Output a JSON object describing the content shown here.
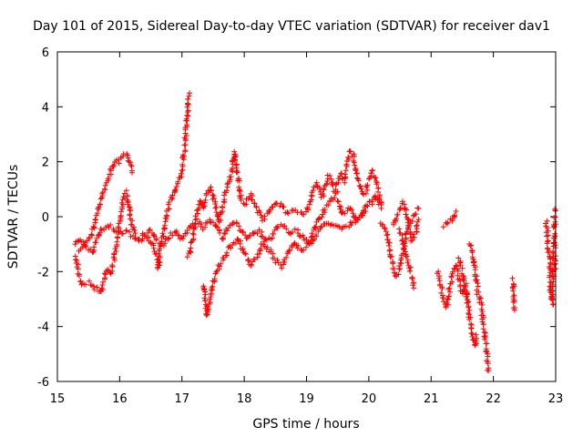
{
  "chart_data": {
    "type": "scatter",
    "title": "Day 101 of 2015, Sidereal Day-to-day VTEC variation (SDTVAR) for receiver dav1",
    "xlabel": "GPS time / hours",
    "ylabel": "SDTVAR / TECUs",
    "xlim": [
      15,
      23
    ],
    "ylim": [
      -6,
      6
    ],
    "x_ticks": [
      15,
      16,
      17,
      18,
      19,
      20,
      21,
      22,
      23
    ],
    "y_ticks": [
      -6,
      -4,
      -2,
      0,
      2,
      4,
      6
    ],
    "grid": false,
    "marker": "+",
    "marker_color": "#ff0000",
    "series": [
      {
        "name": "SDTVAR",
        "tracks": [
          [
            [
              15.27,
              -1.0
            ],
            [
              15.35,
              -0.8
            ],
            [
              15.45,
              -1.1
            ],
            [
              15.55,
              -1.3
            ],
            [
              15.62,
              -0.9
            ],
            [
              15.7,
              -0.5
            ],
            [
              15.8,
              -0.3
            ],
            [
              15.9,
              -0.4
            ],
            [
              16.0,
              -0.6
            ],
            [
              16.1,
              -0.5
            ],
            [
              16.2,
              -0.7
            ],
            [
              16.3,
              -0.8
            ],
            [
              16.4,
              -0.6
            ],
            [
              16.5,
              -0.5
            ],
            [
              16.6,
              -0.9
            ],
            [
              16.7,
              -1.0
            ],
            [
              16.8,
              -0.7
            ],
            [
              16.9,
              -0.5
            ],
            [
              17.0,
              -0.8
            ],
            [
              17.05,
              -0.6
            ],
            [
              17.15,
              -0.3
            ],
            [
              17.25,
              -0.2
            ],
            [
              17.35,
              -0.4
            ],
            [
              17.45,
              -0.1
            ],
            [
              17.55,
              -0.3
            ],
            [
              17.65,
              -0.8
            ],
            [
              17.75,
              -0.4
            ],
            [
              17.85,
              -0.2
            ],
            [
              17.95,
              -0.5
            ],
            [
              18.05,
              -0.8
            ],
            [
              18.15,
              -0.6
            ],
            [
              18.25,
              -0.5
            ],
            [
              18.35,
              -0.9
            ],
            [
              18.45,
              -0.7
            ],
            [
              18.55,
              -0.3
            ],
            [
              18.65,
              -0.4
            ],
            [
              18.75,
              -0.6
            ],
            [
              18.85,
              -0.5
            ],
            [
              18.95,
              -0.8
            ],
            [
              19.05,
              -1.0
            ],
            [
              19.15,
              -0.7
            ],
            [
              19.25,
              -0.4
            ],
            [
              19.35,
              -0.2
            ],
            [
              19.45,
              -0.3
            ],
            [
              19.55,
              -0.5
            ],
            [
              19.65,
              -0.4
            ],
            [
              19.75,
              -0.1
            ],
            [
              19.85,
              0.0
            ],
            [
              19.95,
              0.2
            ]
          ],
          [
            [
              15.3,
              -1.5
            ],
            [
              15.35,
              -2.2
            ],
            [
              15.4,
              -2.5
            ],
            [
              15.5,
              -2.4
            ],
            [
              15.6,
              -2.6
            ],
            [
              15.7,
              -2.8
            ],
            [
              15.75,
              -2.3
            ],
            [
              15.8,
              -1.9
            ],
            [
              15.85,
              -2.1
            ],
            [
              15.9,
              -1.6
            ],
            [
              15.95,
              -1.0
            ],
            [
              16.0,
              -0.2
            ],
            [
              16.05,
              0.5
            ],
            [
              16.1,
              0.9
            ],
            [
              16.15,
              0.3
            ],
            [
              16.2,
              -0.3
            ],
            [
              16.25,
              -0.6
            ]
          ],
          [
            [
              15.35,
              -1.2
            ],
            [
              15.45,
              -0.9
            ],
            [
              15.55,
              -0.6
            ],
            [
              15.6,
              -0.2
            ],
            [
              15.65,
              0.3
            ],
            [
              15.7,
              0.6
            ],
            [
              15.75,
              1.0
            ],
            [
              15.8,
              1.3
            ],
            [
              15.85,
              1.6
            ],
            [
              15.9,
              1.9
            ],
            [
              15.95,
              2.1
            ],
            [
              16.0,
              2.0
            ],
            [
              16.05,
              2.2
            ],
            [
              16.1,
              2.3
            ],
            [
              16.15,
              2.0
            ],
            [
              16.2,
              1.6
            ]
          ],
          [
            [
              16.3,
              -0.9
            ],
            [
              16.4,
              -0.7
            ],
            [
              16.5,
              -0.9
            ],
            [
              16.6,
              -1.5
            ],
            [
              16.62,
              -1.9
            ],
            [
              16.65,
              -1.2
            ],
            [
              16.7,
              -0.5
            ],
            [
              16.75,
              0.1
            ],
            [
              16.8,
              0.5
            ],
            [
              16.85,
              0.7
            ],
            [
              16.9,
              1.0
            ],
            [
              16.95,
              1.3
            ],
            [
              17.0,
              1.6
            ],
            [
              17.02,
              2.0
            ],
            [
              17.05,
              2.8
            ],
            [
              17.08,
              3.5
            ],
            [
              17.1,
              4.2
            ],
            [
              17.12,
              4.5
            ]
          ],
          [
            [
              17.1,
              -1.5
            ],
            [
              17.15,
              -1.0
            ],
            [
              17.2,
              -0.5
            ],
            [
              17.25,
              0.2
            ],
            [
              17.3,
              0.6
            ],
            [
              17.35,
              0.3
            ],
            [
              17.4,
              0.8
            ],
            [
              17.45,
              1.1
            ],
            [
              17.5,
              0.7
            ],
            [
              17.55,
              0.3
            ],
            [
              17.6,
              -0.2
            ],
            [
              17.65,
              0.4
            ],
            [
              17.7,
              0.9
            ],
            [
              17.75,
              1.2
            ],
            [
              17.8,
              1.6
            ],
            [
              17.85,
              2.4
            ],
            [
              17.9,
              1.3
            ],
            [
              17.95,
              0.6
            ]
          ],
          [
            [
              17.35,
              -2.5
            ],
            [
              17.38,
              -3.2
            ],
            [
              17.4,
              -3.6
            ],
            [
              17.45,
              -3.0
            ],
            [
              17.5,
              -2.4
            ],
            [
              17.6,
              -1.8
            ],
            [
              17.7,
              -1.4
            ],
            [
              17.8,
              -1.0
            ],
            [
              17.9,
              -0.8
            ],
            [
              18.0,
              -1.3
            ],
            [
              18.1,
              -1.8
            ],
            [
              18.2,
              -1.5
            ],
            [
              18.3,
              -1.0
            ],
            [
              18.4,
              -1.2
            ],
            [
              18.5,
              -1.6
            ],
            [
              18.6,
              -1.8
            ],
            [
              18.7,
              -1.3
            ],
            [
              18.8,
              -0.9
            ],
            [
              18.9,
              -1.2
            ],
            [
              19.0,
              -1.1
            ],
            [
              19.1,
              -0.6
            ],
            [
              19.2,
              -0.1
            ],
            [
              19.3,
              0.3
            ],
            [
              19.4,
              0.6
            ],
            [
              19.5,
              0.9
            ]
          ],
          [
            [
              18.0,
              0.4
            ],
            [
              18.1,
              0.8
            ],
            [
              18.2,
              0.3
            ],
            [
              18.3,
              -0.1
            ],
            [
              18.4,
              0.2
            ],
            [
              18.5,
              0.5
            ],
            [
              18.6,
              0.4
            ],
            [
              18.7,
              0.1
            ],
            [
              18.8,
              0.3
            ],
            [
              18.9,
              0.2
            ],
            [
              19.0,
              0.1
            ],
            [
              19.05,
              0.5
            ],
            [
              19.1,
              0.9
            ],
            [
              19.15,
              1.2
            ],
            [
              19.2,
              1.0
            ],
            [
              19.25,
              0.7
            ],
            [
              19.3,
              1.1
            ],
            [
              19.35,
              1.5
            ],
            [
              19.4,
              1.3
            ],
            [
              19.45,
              1.0
            ],
            [
              19.5,
              1.2
            ],
            [
              19.55,
              1.6
            ],
            [
              19.6,
              1.3
            ],
            [
              19.65,
              1.9
            ],
            [
              19.7,
              2.4
            ],
            [
              19.75,
              2.2
            ],
            [
              19.8,
              1.6
            ],
            [
              19.85,
              1.1
            ],
            [
              19.9,
              0.8
            ],
            [
              19.95,
              0.9
            ],
            [
              20.0,
              1.3
            ],
            [
              20.05,
              1.7
            ],
            [
              20.1,
              1.4
            ],
            [
              20.15,
              1.0
            ],
            [
              20.2,
              0.5
            ]
          ],
          [
            [
              19.5,
              0.6
            ],
            [
              19.55,
              0.3
            ],
            [
              19.6,
              0.1
            ],
            [
              19.65,
              0.2
            ],
            [
              19.7,
              0.3
            ],
            [
              19.75,
              0.1
            ],
            [
              19.8,
              -0.2
            ],
            [
              19.85,
              -0.1
            ],
            [
              19.9,
              0.1
            ],
            [
              19.95,
              0.4
            ],
            [
              20.0,
              0.5
            ],
            [
              20.05,
              0.4
            ],
            [
              20.1,
              0.8
            ],
            [
              20.15,
              0.6
            ],
            [
              20.2,
              0.3
            ]
          ],
          [
            [
              20.2,
              -0.2
            ],
            [
              20.25,
              -0.5
            ],
            [
              20.3,
              -0.8
            ],
            [
              20.35,
              -1.4
            ],
            [
              20.4,
              -2.0
            ],
            [
              20.45,
              -2.2
            ],
            [
              20.5,
              -1.8
            ],
            [
              20.55,
              -1.2
            ],
            [
              20.6,
              -0.6
            ],
            [
              20.65,
              -0.3
            ],
            [
              20.7,
              -0.1
            ],
            [
              20.75,
              0.1
            ],
            [
              20.8,
              0.3
            ]
          ],
          [
            [
              20.4,
              -0.3
            ],
            [
              20.45,
              0.0
            ],
            [
              20.5,
              0.3
            ],
            [
              20.55,
              0.5
            ],
            [
              20.6,
              0.2
            ],
            [
              20.65,
              -0.4
            ],
            [
              20.7,
              -0.9
            ],
            [
              20.75,
              -0.6
            ],
            [
              20.8,
              -0.1
            ]
          ],
          [
            [
              20.5,
              -0.5
            ],
            [
              20.55,
              -0.9
            ],
            [
              20.6,
              -1.3
            ],
            [
              20.65,
              -1.8
            ],
            [
              20.7,
              -2.3
            ],
            [
              20.72,
              -2.6
            ]
          ],
          [
            [
              21.1,
              -2.0
            ],
            [
              21.15,
              -2.5
            ],
            [
              21.2,
              -3.0
            ],
            [
              21.25,
              -3.3
            ],
            [
              21.3,
              -2.6
            ],
            [
              21.35,
              -2.1
            ],
            [
              21.4,
              -1.8
            ],
            [
              21.45,
              -2.3
            ],
            [
              21.5,
              -2.8
            ],
            [
              21.55,
              -2.5
            ],
            [
              21.6,
              -3.1
            ]
          ],
          [
            [
              21.2,
              -0.3
            ],
            [
              21.25,
              -0.2
            ],
            [
              21.3,
              -0.1
            ],
            [
              21.35,
              -0.1
            ],
            [
              21.4,
              0.2
            ]
          ],
          [
            [
              21.45,
              -1.5
            ],
            [
              21.5,
              -2.0
            ],
            [
              21.55,
              -2.7
            ],
            [
              21.6,
              -3.3
            ],
            [
              21.62,
              -3.8
            ],
            [
              21.65,
              -4.2
            ],
            [
              21.68,
              -4.5
            ],
            [
              21.7,
              -4.7
            ],
            [
              21.72,
              -4.3
            ]
          ],
          [
            [
              21.62,
              -1.0
            ],
            [
              21.65,
              -1.2
            ],
            [
              21.7,
              -1.8
            ],
            [
              21.75,
              -2.8
            ],
            [
              21.8,
              -3.2
            ],
            [
              21.85,
              -4.0
            ],
            [
              21.88,
              -4.6
            ],
            [
              21.9,
              -5.2
            ],
            [
              21.92,
              -5.6
            ]
          ],
          [
            [
              22.32,
              -2.3
            ],
            [
              22.33,
              -3.0
            ],
            [
              22.34,
              -3.4
            ]
          ],
          [
            [
              22.85,
              -0.2
            ],
            [
              22.88,
              -1.0
            ],
            [
              22.9,
              -1.6
            ],
            [
              22.92,
              -2.8
            ],
            [
              22.95,
              -3.2
            ],
            [
              22.97,
              -1.2
            ],
            [
              22.98,
              -0.3
            ],
            [
              22.99,
              0.2
            ],
            [
              23.0,
              0.3
            ],
            [
              23.0,
              -1.9
            ]
          ]
        ]
      }
    ]
  }
}
